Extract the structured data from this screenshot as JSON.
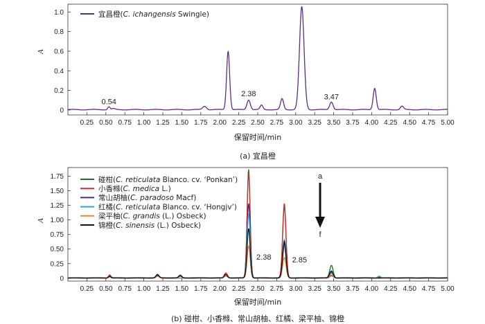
{
  "chart_data": [
    {
      "type": "line",
      "caption": "(a)  宜昌橙",
      "xlabel": "保留时间/min",
      "ylabel": "A",
      "xlim": [
        0,
        5.0
      ],
      "ylim": [
        -0.05,
        1.08
      ],
      "xticks": [
        "0.25",
        "0.50",
        "0.75",
        "1.00",
        "1.25",
        "1.50",
        "1.75",
        "2.00",
        "2.25",
        "2.50",
        "2.75",
        "3.00",
        "3.25",
        "3.50",
        "3.75",
        "4.00",
        "4.25",
        "4.50",
        "4.75",
        "5.00"
      ],
      "yticks": [
        "0",
        "0.2",
        "0.4",
        "0.6",
        "0.8",
        "1.0"
      ],
      "legend_position": "top-left",
      "series": [
        {
          "legend": {
            "prefix": "宜昌橙(",
            "italic": "C. ichangensis",
            "suffix": " Swingle)"
          },
          "color": "#5b2c86",
          "peaks": [
            [
              0.54,
              0.03,
              0.015
            ],
            [
              0.6,
              0.01,
              0.02
            ],
            [
              1.8,
              0.035,
              0.025
            ],
            [
              2.11,
              0.6,
              0.02
            ],
            [
              2.38,
              0.1,
              0.022
            ],
            [
              2.55,
              0.045,
              0.018
            ],
            [
              2.82,
              0.11,
              0.02
            ],
            [
              3.08,
              1.05,
              0.03
            ],
            [
              3.47,
              0.08,
              0.022
            ],
            [
              4.04,
              0.22,
              0.02
            ],
            [
              4.4,
              0.035,
              0.02
            ]
          ]
        }
      ],
      "annotations": [
        {
          "text": "0.54",
          "x": 0.54,
          "y": 0.06
        },
        {
          "text": "2.38",
          "x": 2.38,
          "y": 0.14
        },
        {
          "text": "3.47",
          "x": 3.47,
          "y": 0.11
        }
      ]
    },
    {
      "type": "line",
      "caption": "(b)  碰柑、小香橼、常山胡柚、红橘、梁平柚、锦橙",
      "xlabel": "保留时间/min",
      "ylabel": "A",
      "xlim": [
        0,
        5.0
      ],
      "ylim": [
        -0.05,
        1.9
      ],
      "xticks": [
        "0.25",
        "0.50",
        "0.75",
        "1.00",
        "1.25",
        "1.50",
        "1.75",
        "2.00",
        "2.25",
        "2.50",
        "2.75",
        "3.00",
        "3.25",
        "3.50",
        "3.75",
        "4.00",
        "4.25",
        "4.50",
        "4.75",
        "5.00"
      ],
      "yticks": [
        "0",
        "0.25",
        "0.50",
        "0.75",
        "1.00",
        "1.25",
        "1.50",
        "1.75"
      ],
      "legend_position": "top-left",
      "series": [
        {
          "legend": {
            "prefix": "碰柑(",
            "italic": "C. reticulata",
            "suffix": " Blanco. cv. ‘Ponkan’)"
          },
          "color": "#1f6b2a",
          "peaks": [
            [
              0.55,
              0.04,
              0.015
            ],
            [
              1.18,
              0.06,
              0.02
            ],
            [
              1.48,
              0.05,
              0.02
            ],
            [
              2.08,
              0.05,
              0.02
            ],
            [
              2.38,
              1.87,
              0.02
            ],
            [
              2.85,
              1.22,
              0.022
            ],
            [
              3.47,
              0.22,
              0.022
            ],
            [
              4.1,
              0.02,
              0.02
            ]
          ]
        },
        {
          "legend": {
            "prefix": "小香橼(",
            "italic": "C. medica",
            "suffix": " L.)"
          },
          "color": "#d42a2a",
          "peaks": [
            [
              0.55,
              0.05,
              0.015
            ],
            [
              1.18,
              0.05,
              0.02
            ],
            [
              1.48,
              0.04,
              0.02
            ],
            [
              2.08,
              0.09,
              0.02
            ],
            [
              2.38,
              1.8,
              0.02
            ],
            [
              2.85,
              1.28,
              0.022
            ],
            [
              3.47,
              0.04,
              0.022
            ]
          ]
        },
        {
          "legend": {
            "prefix": "常山胡柚(",
            "italic": "C. paradoso",
            "suffix": " Macf)"
          },
          "color": "#3a2f8f",
          "peaks": [
            [
              0.55,
              0.03,
              0.015
            ],
            [
              1.18,
              0.04,
              0.02
            ],
            [
              2.08,
              0.04,
              0.02
            ],
            [
              2.38,
              1.28,
              0.02
            ],
            [
              2.85,
              0.65,
              0.022
            ],
            [
              3.47,
              0.1,
              0.022
            ]
          ]
        },
        {
          "legend": {
            "prefix": "红橘(",
            "italic": "C. reticulata",
            "suffix": " Blanco. cv. ‘Hongjv’)"
          },
          "color": "#2aa7d6",
          "peaks": [
            [
              0.55,
              0.03,
              0.015
            ],
            [
              1.18,
              0.03,
              0.02
            ],
            [
              2.08,
              0.03,
              0.02
            ],
            [
              2.38,
              1.1,
              0.02
            ],
            [
              2.85,
              0.55,
              0.022
            ],
            [
              3.47,
              0.08,
              0.022
            ],
            [
              4.1,
              0.03,
              0.02
            ]
          ]
        },
        {
          "legend": {
            "prefix": "梁平柚(",
            "italic": "C. grandis",
            "suffix": " (L.) Osbeck)"
          },
          "color": "#e8882a",
          "peaks": [
            [
              0.55,
              0.02,
              0.015
            ],
            [
              1.18,
              0.03,
              0.02
            ],
            [
              2.08,
              0.04,
              0.02
            ],
            [
              2.38,
              0.55,
              0.02
            ],
            [
              2.85,
              0.35,
              0.022
            ],
            [
              3.47,
              0.05,
              0.022
            ]
          ]
        },
        {
          "legend": {
            "prefix": "锦橙(",
            "italic": "C. sinensis",
            "suffix": " (L.) Osbeck)"
          },
          "color": "#111111",
          "peaks": [
            [
              0.55,
              0.03,
              0.015
            ],
            [
              1.18,
              0.05,
              0.02
            ],
            [
              1.48,
              0.03,
              0.02
            ],
            [
              2.08,
              0.06,
              0.02
            ],
            [
              2.38,
              0.85,
              0.02
            ],
            [
              2.85,
              0.6,
              0.022
            ],
            [
              3.47,
              0.12,
              0.022
            ]
          ]
        }
      ],
      "annotations": [
        {
          "text": "2.38",
          "x": 2.58,
          "y": 0.32
        },
        {
          "text": "2.85",
          "x": 3.05,
          "y": 0.27
        }
      ],
      "arrow": {
        "top_label": "a",
        "bottom_label": "f"
      }
    }
  ]
}
